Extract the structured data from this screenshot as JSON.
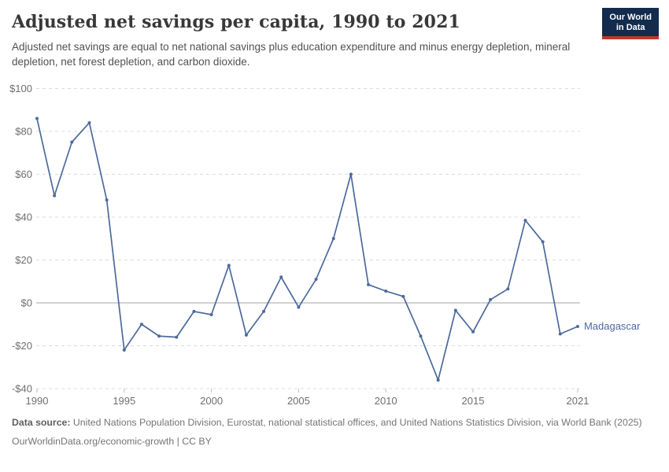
{
  "header": {
    "title": "Adjusted net savings per capita, 1990 to 2021",
    "subtitle": "Adjusted net savings are equal to net national savings plus education expenditure and minus energy depletion, mineral depletion, net forest depletion, and carbon dioxide.",
    "logo": {
      "line1": "Our World",
      "line2": "in Data",
      "bg_color": "#132c4d",
      "accent_color": "#c0372d"
    }
  },
  "chart_data": {
    "type": "line",
    "title": "Adjusted net savings per capita, 1990 to 2021",
    "xlabel": "",
    "ylabel": "",
    "xlim": [
      1990,
      2021
    ],
    "ylim": [
      -40,
      100
    ],
    "x": [
      1990,
      1991,
      1992,
      1993,
      1994,
      1995,
      1996,
      1997,
      1998,
      1999,
      2000,
      2001,
      2002,
      2003,
      2004,
      2005,
      2006,
      2007,
      2008,
      2009,
      2010,
      2011,
      2012,
      2013,
      2014,
      2015,
      2016,
      2017,
      2018,
      2019,
      2020,
      2021
    ],
    "series": [
      {
        "name": "Madagascar",
        "color": "#4C6A9C",
        "values": [
          86,
          50,
          75,
          84,
          48,
          -22,
          -10,
          -15.5,
          -16,
          -4,
          -5.5,
          17.5,
          -15,
          -4,
          12,
          -2,
          11,
          30,
          60,
          8.5,
          5.5,
          3,
          -15.5,
          -36,
          -3.5,
          -13.5,
          1.5,
          6.5,
          38.5,
          28.5,
          -14.5,
          -11
        ]
      }
    ],
    "x_ticks": [
      1990,
      1995,
      2000,
      2005,
      2010,
      2015,
      2021
    ],
    "y_ticks": [
      100,
      80,
      60,
      40,
      20,
      0,
      -20,
      -40
    ],
    "y_tick_labels": [
      "$100",
      "$80",
      "$60",
      "$40",
      "$20",
      "$0",
      "-$20",
      "-$40"
    ],
    "grid": {
      "horizontal": true,
      "style": "dashed",
      "color": "#dcdcdc",
      "zero_line_color": "#a5a5a5",
      "tick_color": "#bdbdbd"
    },
    "legend": "end-of-line-label",
    "end_label": "Madagascar"
  },
  "footer": {
    "source_label": "Data source:",
    "source_text": " United Nations Population Division, Eurostat, national statistical offices, and United Nations Statistics Division, via World Bank (2025)",
    "license_line": "OurWorldinData.org/economic-growth | CC BY"
  }
}
